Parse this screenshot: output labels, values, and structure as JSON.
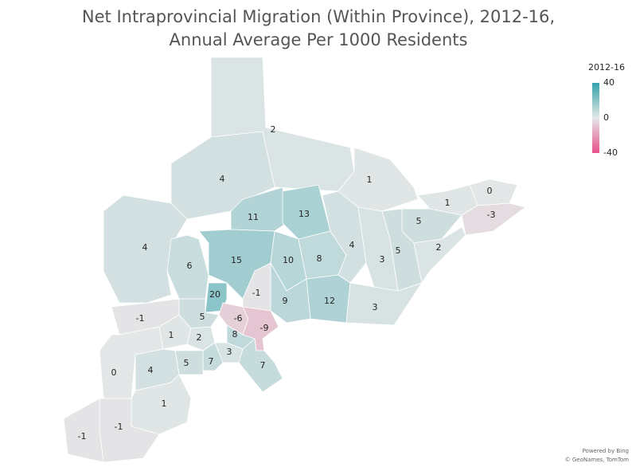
{
  "title": "Net Intraprovincial Migration (Within Province), 2012-16,",
  "subtitle": "Annual Average Per 1000 Residents",
  "legend": {
    "title": "2012-16",
    "ticks": [
      40,
      0,
      -40
    ],
    "range": [
      -40,
      40
    ],
    "colors": [
      "#e8508a",
      "#e4e7e7",
      "#31a2aa"
    ]
  },
  "regions": [
    2,
    4,
    1,
    0,
    1,
    -3,
    11,
    13,
    5,
    4,
    15,
    6,
    10,
    8,
    4,
    3,
    5,
    2,
    -1,
    20,
    9,
    12,
    3,
    -1,
    5,
    -6,
    -9,
    1,
    2,
    8,
    3,
    5,
    7,
    7,
    0,
    4,
    1,
    -1,
    -1
  ],
  "attribution": [
    "Powered by Bing",
    "© GeoNames, TomTom"
  ]
}
